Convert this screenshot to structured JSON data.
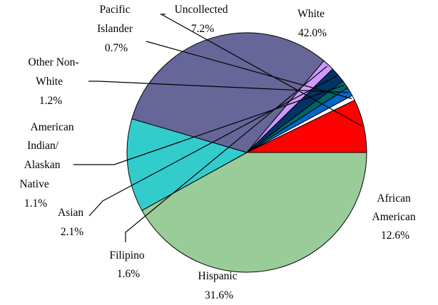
{
  "chart_data": {
    "type": "pie",
    "slices": [
      {
        "name": "White",
        "value": 42.0,
        "label": "42.0%",
        "color": "#99CC99"
      },
      {
        "name": "African American",
        "value": 12.6,
        "label": "12.6%",
        "color": "#33CCCC"
      },
      {
        "name": "Hispanic",
        "value": 31.6,
        "label": "31.6%",
        "color": "#666699"
      },
      {
        "name": "Filipino",
        "value": 1.6,
        "label": "1.6%",
        "color": "#CC99FF"
      },
      {
        "name": "Asian",
        "value": 2.1,
        "label": "2.1%",
        "color": "#003366"
      },
      {
        "name": "American Indian/ Alaskan Native",
        "value": 1.1,
        "label": "1.1%",
        "color": "#006666"
      },
      {
        "name": "Other Non-White",
        "value": 1.2,
        "label": "1.2%",
        "color": "#0066CC"
      },
      {
        "name": "Pacific Islander",
        "value": 0.7,
        "label": "0.7%",
        "color": "#FFFFFF"
      },
      {
        "name": "Uncollected",
        "value": 7.2,
        "label": "7.2%",
        "color": "#FF0000"
      }
    ]
  }
}
